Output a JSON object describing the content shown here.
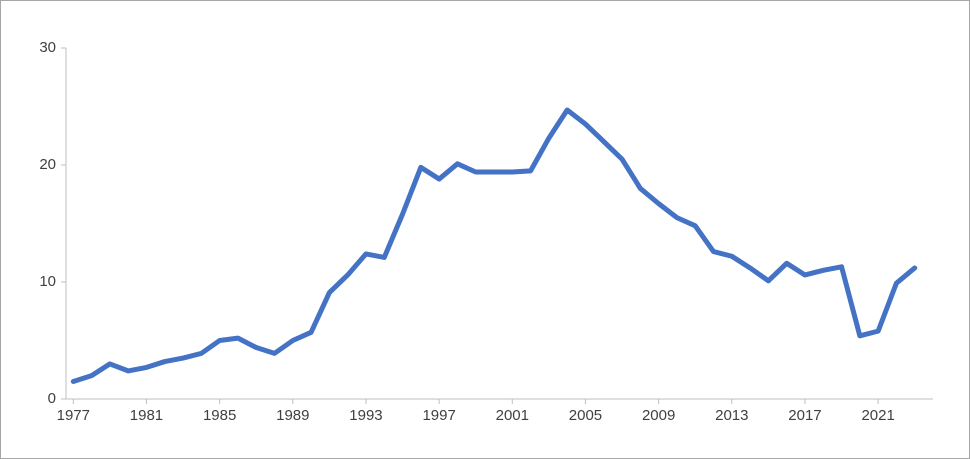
{
  "chart_data": {
    "type": "line",
    "x": [
      1977,
      1978,
      1979,
      1980,
      1981,
      1982,
      1983,
      1984,
      1985,
      1986,
      1987,
      1988,
      1989,
      1990,
      1991,
      1992,
      1993,
      1994,
      1995,
      1996,
      1997,
      1998,
      1999,
      2000,
      2001,
      2002,
      2003,
      2004,
      2005,
      2006,
      2007,
      2008,
      2009,
      2010,
      2011,
      2012,
      2013,
      2014,
      2015,
      2016,
      2017,
      2018,
      2019,
      2020,
      2021,
      2022,
      2023
    ],
    "values": [
      1.5,
      2.0,
      3.0,
      2.4,
      2.7,
      3.2,
      3.5,
      3.9,
      5.0,
      5.2,
      4.4,
      3.9,
      5.0,
      5.7,
      9.1,
      10.6,
      12.4,
      12.1,
      15.8,
      19.8,
      18.8,
      20.1,
      19.4,
      19.4,
      19.4,
      19.5,
      22.3,
      24.7,
      23.5,
      22.0,
      20.5,
      18.0,
      16.7,
      15.5,
      14.8,
      12.6,
      12.2,
      11.2,
      10.1,
      11.6,
      10.6,
      11.0,
      11.3,
      5.4,
      5.8,
      9.9,
      11.2
    ],
    "color": "#4472c4",
    "xlim": [
      1976.6,
      2024
    ],
    "xticks": [
      1977,
      1981,
      1985,
      1989,
      1993,
      1997,
      2001,
      2005,
      2009,
      2013,
      2017,
      2021
    ],
    "ylim": [
      0,
      30
    ],
    "yticks": [
      0,
      10,
      20,
      30
    ]
  }
}
